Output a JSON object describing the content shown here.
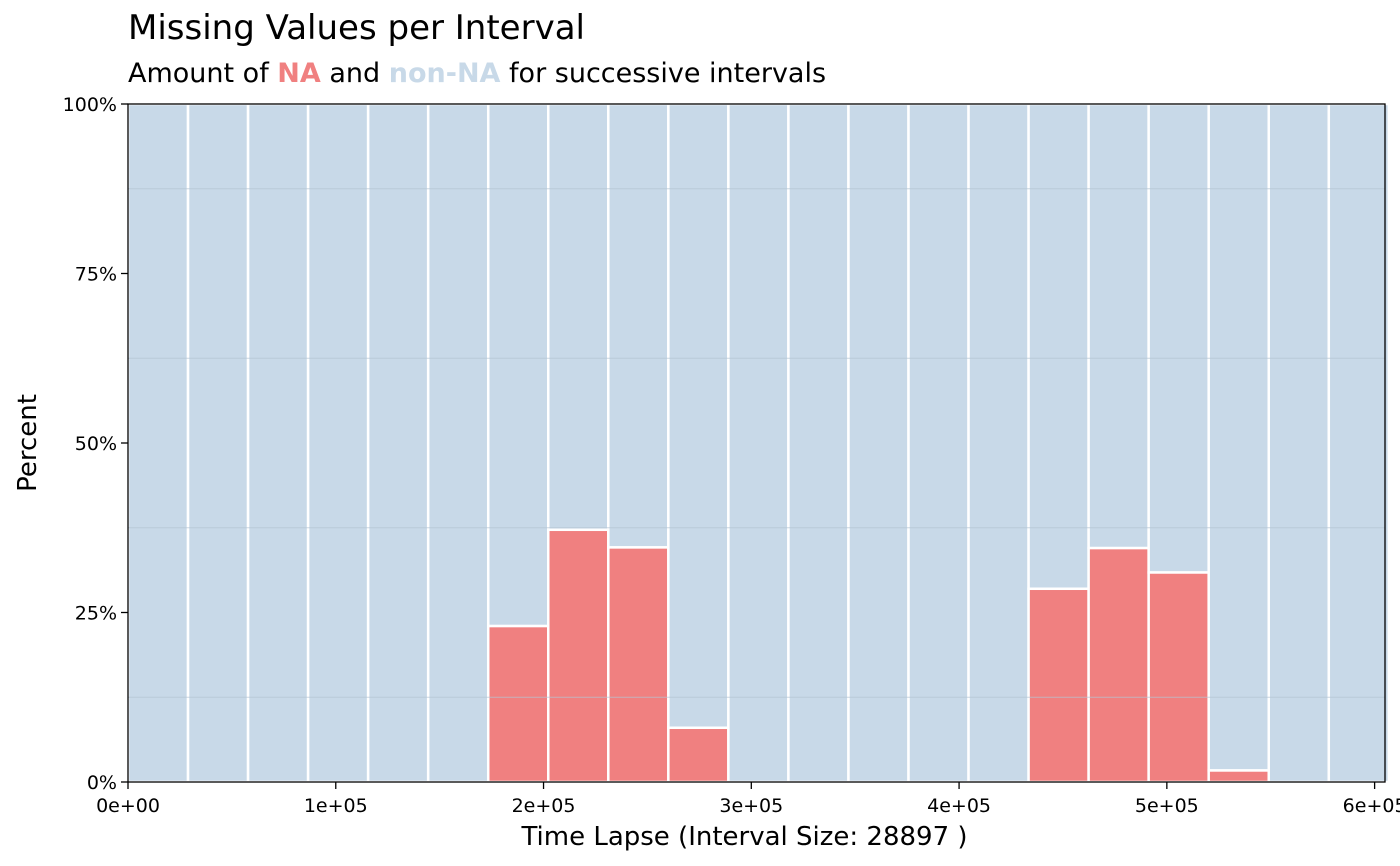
{
  "chart_data": {
    "type": "bar",
    "title": "Missing Values per Interval",
    "subtitle": {
      "prefix": "Amount of ",
      "na_label": "NA",
      "middle": " and ",
      "non_na_label": "non-NA",
      "suffix": " for successive intervals"
    },
    "xlabel": "Time Lapse (Interval Size: 28897 )",
    "ylabel": "Percent",
    "interval_size": 28897,
    "x_tick_labels": [
      "0e+00",
      "1e+05",
      "2e+05",
      "3e+05",
      "4e+05",
      "5e+05",
      "6e+05"
    ],
    "x_ticks": [
      0,
      100000,
      200000,
      300000,
      400000,
      500000,
      600000
    ],
    "y_tick_labels": [
      "0%",
      "25%",
      "50%",
      "75%",
      "100%"
    ],
    "y_ticks": [
      0,
      25,
      50,
      75,
      100
    ],
    "xlim": [
      0,
      605000
    ],
    "ylim": [
      0,
      100
    ],
    "series": [
      {
        "name": "NA",
        "values": [
          0,
          0,
          0,
          0,
          0,
          0,
          23,
          37.2,
          34.6,
          8,
          0,
          0,
          0,
          0,
          0,
          28.5,
          34.5,
          30.9,
          1.7,
          0,
          0
        ]
      },
      {
        "name": "non-NA",
        "values": [
          100,
          100,
          100,
          100,
          100,
          100,
          77,
          62.8,
          65.4,
          92,
          100,
          100,
          100,
          100,
          100,
          71.5,
          65.5,
          69.1,
          98.3,
          100,
          100
        ]
      }
    ],
    "colors": {
      "na": "#f08080",
      "non_na": "#c8d9e8",
      "gridline": "#b4c4d3",
      "bar_border": "#ffffff"
    },
    "grid": true,
    "stacked": true
  }
}
